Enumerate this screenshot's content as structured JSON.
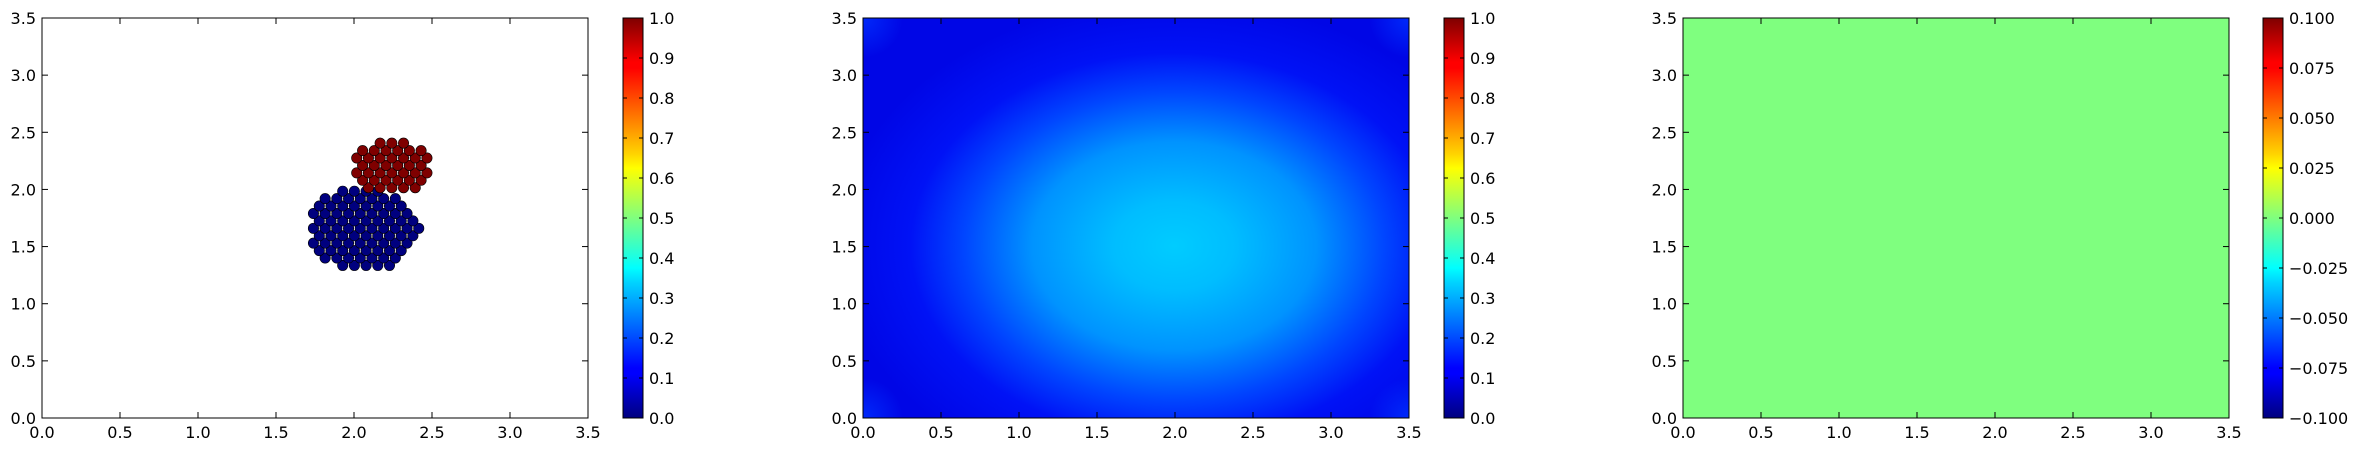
{
  "chart_data": [
    {
      "type": "scatter",
      "title": "",
      "xlabel": "",
      "ylabel": "",
      "xlim": [
        0.0,
        3.5
      ],
      "ylim": [
        0.0,
        3.5
      ],
      "xticks": [
        "0.0",
        "0.5",
        "1.0",
        "1.5",
        "2.0",
        "2.5",
        "3.0",
        "3.5"
      ],
      "yticks": [
        "0.0",
        "0.5",
        "1.0",
        "1.5",
        "2.0",
        "2.5",
        "3.0",
        "3.5"
      ],
      "grid": false,
      "colormap": "jet",
      "colorbar": {
        "range": [
          0.0,
          1.0
        ],
        "ticks": [
          "0.0",
          "0.1",
          "0.2",
          "0.3",
          "0.4",
          "0.5",
          "0.6",
          "0.7",
          "0.8",
          "0.9",
          "1.0"
        ]
      },
      "clusters": [
        {
          "value": 0.0,
          "color": "#00007f",
          "center": [
            2.05,
            1.65
          ],
          "radius": 0.36,
          "spacing": 0.075,
          "x_extent": [
            1.74,
            2.42
          ],
          "y_extent": [
            1.27,
            2.02
          ]
        },
        {
          "value": 1.0,
          "color": "#7f0000",
          "center": [
            2.25,
            2.2
          ],
          "radius": 0.24,
          "spacing": 0.075,
          "x_extent": [
            1.98,
            2.56
          ],
          "y_extent": [
            1.95,
            2.48
          ]
        }
      ]
    },
    {
      "type": "heatmap",
      "title": "",
      "xlabel": "",
      "ylabel": "",
      "xlim": [
        0.0,
        3.5
      ],
      "ylim": [
        0.0,
        3.5
      ],
      "xticks": [
        "0.0",
        "0.5",
        "1.0",
        "1.5",
        "2.0",
        "2.5",
        "3.0",
        "3.5"
      ],
      "yticks": [
        "0.0",
        "0.5",
        "1.0",
        "1.5",
        "2.0",
        "2.5",
        "3.0",
        "3.5"
      ],
      "grid": false,
      "colormap": "jet",
      "colorbar": {
        "range": [
          0.0,
          1.0
        ],
        "ticks": [
          "0.0",
          "0.1",
          "0.2",
          "0.3",
          "0.4",
          "0.5",
          "0.6",
          "0.7",
          "0.8",
          "0.9",
          "1.0"
        ]
      },
      "field": {
        "peak_value": 0.34,
        "peak_location": [
          2.0,
          1.5
        ],
        "border_value": 0.05,
        "corner_value": 0.13
      }
    },
    {
      "type": "heatmap",
      "title": "",
      "xlabel": "",
      "ylabel": "",
      "xlim": [
        0.0,
        3.5
      ],
      "ylim": [
        0.0,
        3.5
      ],
      "xticks": [
        "0.0",
        "0.5",
        "1.0",
        "1.5",
        "2.0",
        "2.5",
        "3.0",
        "3.5"
      ],
      "yticks": [
        "0.0",
        "0.5",
        "1.0",
        "1.5",
        "2.0",
        "2.5",
        "3.0",
        "3.5"
      ],
      "grid": false,
      "colormap": "jet",
      "colorbar": {
        "range": [
          -0.1,
          0.1
        ],
        "ticks": [
          "−0.100",
          "−0.075",
          "−0.050",
          "−0.025",
          "0.000",
          "0.025",
          "0.050",
          "0.075",
          "0.100"
        ]
      },
      "field": {
        "uniform_value": 0.0,
        "fill_color": "#7fff7f"
      }
    }
  ]
}
